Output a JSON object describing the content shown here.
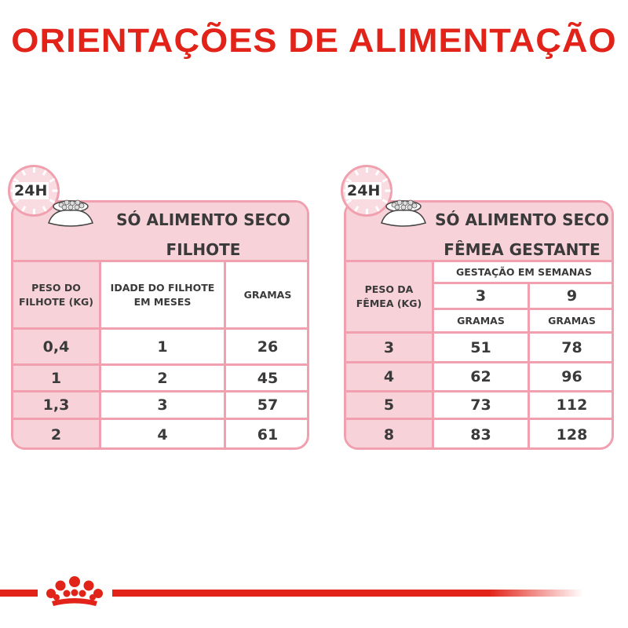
{
  "title": "ORIENTAÇÕES DE ALIMENTAÇÃO",
  "colors": {
    "brand_red": "#e2231a",
    "pink_border": "#f0a0ae",
    "pink_fill": "#f7d2d8"
  },
  "icons": [
    "clock-24h-icon",
    "food-bowl-icon",
    "royal-canin-crown-logo"
  ],
  "puppy_table": {
    "badge": "24H",
    "line1": "SÓ ALIMENTO SECO",
    "line2": "FILHOTE",
    "headers": [
      "PESO DO FILHOTE (KG)",
      "IDADE DO FILHOTE EM MESES",
      "GRAMAS"
    ],
    "rows": [
      [
        "0,4",
        "1",
        "26"
      ],
      [
        "1",
        "2",
        "45"
      ],
      [
        "1,3",
        "3",
        "57"
      ],
      [
        "2",
        "4",
        "61"
      ]
    ]
  },
  "pregnant_table": {
    "badge": "24H",
    "line1": "SÓ ALIMENTO SECO",
    "line2": "FÊMEA GESTANTE",
    "weight_header": "PESO DA FÊMEA (KG)",
    "group_header": "GESTAÇÃO EM SEMANAS",
    "weeks": [
      "3",
      "9"
    ],
    "unit": [
      "GRAMAS",
      "GRAMAS"
    ],
    "rows": [
      [
        "3",
        "51",
        "78"
      ],
      [
        "4",
        "62",
        "96"
      ],
      [
        "5",
        "73",
        "112"
      ],
      [
        "8",
        "83",
        "128"
      ]
    ]
  }
}
